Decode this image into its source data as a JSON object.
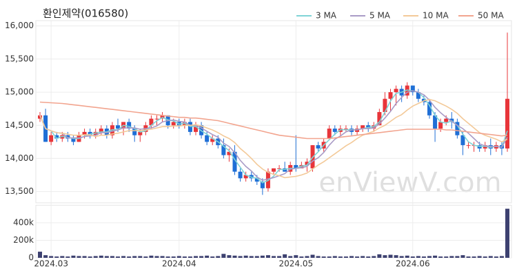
{
  "chart_data": {
    "type": "candlestick",
    "title": "환인제약(016580)",
    "watermark": "enViewV.com",
    "categories": [
      null,
      null,
      "2024.03",
      null,
      null,
      null,
      null,
      null,
      null,
      null,
      null,
      null,
      null,
      null,
      null,
      null,
      null,
      null,
      null,
      null,
      null,
      null,
      null,
      null,
      null,
      "2024.04",
      null,
      null,
      null,
      null,
      null,
      null,
      null,
      null,
      null,
      null,
      null,
      null,
      null,
      null,
      null,
      null,
      null,
      null,
      null,
      null,
      "2024.05",
      null,
      null,
      null,
      null,
      null,
      null,
      null,
      null,
      null,
      null,
      null,
      null,
      null,
      null,
      null,
      null,
      null,
      null,
      null,
      null,
      "2024.06",
      null,
      null,
      null,
      null,
      null,
      null,
      null,
      null,
      null,
      null,
      null,
      null,
      null,
      null,
      null,
      null,
      null
    ],
    "open": [
      14600,
      14650,
      14250,
      14350,
      14300,
      14350,
      14300,
      14250,
      14350,
      14400,
      14350,
      14400,
      14450,
      14350,
      14500,
      14450,
      14550,
      14450,
      14350,
      14400,
      14500,
      14600,
      14600,
      14650,
      14500,
      14550,
      14500,
      14550,
      14400,
      14500,
      14350,
      14250,
      14300,
      14200,
      14050,
      14100,
      13800,
      13700,
      13750,
      13700,
      13650,
      13550,
      13800,
      13850,
      13850,
      13800,
      13900,
      13850,
      13900,
      13850,
      14200,
      14150,
      14300,
      14450,
      14400,
      14450,
      14450,
      14400,
      14450,
      14500,
      14450,
      14500,
      14700,
      14900,
      15000,
      15050,
      14950,
      15100,
      15000,
      14900,
      14850,
      14650,
      14450,
      14550,
      14600,
      14550,
      14350,
      14200,
      14200,
      14200,
      14150,
      14200,
      14150,
      14200,
      14150
    ],
    "high": [
      14700,
      14750,
      14400,
      14400,
      14400,
      14400,
      14350,
      14400,
      14450,
      14450,
      14450,
      14500,
      14500,
      14550,
      14600,
      14550,
      14600,
      14500,
      14450,
      14550,
      14650,
      14650,
      14700,
      14650,
      14600,
      14600,
      14600,
      14600,
      14550,
      14550,
      14400,
      14350,
      14350,
      14300,
      14150,
      14200,
      13850,
      13800,
      13800,
      13750,
      13700,
      13850,
      13850,
      13900,
      13950,
      13950,
      14350,
      13950,
      14000,
      14200,
      14250,
      14300,
      14500,
      14500,
      14500,
      14500,
      14500,
      14500,
      14500,
      14550,
      14550,
      14750,
      15000,
      15050,
      15100,
      15100,
      15150,
      15100,
      15050,
      14950,
      14900,
      14700,
      14600,
      14650,
      14700,
      14600,
      14400,
      14250,
      14250,
      14250,
      14250,
      14300,
      14250,
      14250,
      15900
    ],
    "low": [
      14550,
      14250,
      14200,
      14250,
      14250,
      14250,
      14200,
      14250,
      14300,
      14300,
      14300,
      14350,
      14300,
      14300,
      14400,
      14350,
      14400,
      14250,
      14250,
      14350,
      14450,
      14500,
      14550,
      14450,
      14450,
      14450,
      14450,
      14350,
      14350,
      14300,
      14200,
      14200,
      14150,
      14000,
      13950,
      13750,
      13650,
      13650,
      13650,
      13600,
      13450,
      13500,
      13750,
      13800,
      13800,
      13750,
      13800,
      13850,
      13800,
      13800,
      14100,
      14100,
      14300,
      14350,
      14350,
      14400,
      14350,
      14350,
      14400,
      14400,
      14400,
      14500,
      14650,
      14700,
      14800,
      14850,
      14900,
      14950,
      14850,
      14800,
      14600,
      14250,
      14400,
      14500,
      14450,
      14300,
      14050,
      14150,
      14100,
      14100,
      14100,
      14050,
      14100,
      14050,
      14100
    ],
    "close": [
      14650,
      14250,
      14350,
      14300,
      14350,
      14300,
      14250,
      14350,
      14400,
      14350,
      14400,
      14450,
      14350,
      14500,
      14450,
      14550,
      14450,
      14350,
      14400,
      14500,
      14600,
      14600,
      14650,
      14500,
      14550,
      14500,
      14550,
      14400,
      14500,
      14350,
      14250,
      14300,
      14200,
      14050,
      14100,
      13800,
      13700,
      13750,
      13700,
      13650,
      13550,
      13800,
      13850,
      13850,
      13800,
      13900,
      13850,
      13900,
      13950,
      14200,
      14150,
      14250,
      14450,
      14400,
      14450,
      14450,
      14400,
      14450,
      14500,
      14450,
      14500,
      14700,
      14900,
      15000,
      15050,
      14950,
      15100,
      15000,
      14900,
      14850,
      14650,
      14450,
      14550,
      14600,
      14550,
      14350,
      14200,
      14200,
      14200,
      14150,
      14200,
      14150,
      14200,
      14150,
      14900
    ],
    "up_color": "#e8353a",
    "down_color": "#1f6fd6",
    "series": [
      {
        "name": "3 MA",
        "color": "#7fd3d6",
        "values": [
          14650,
          14450,
          14417,
          14300,
          14333,
          14317,
          14300,
          14300,
          14333,
          14367,
          14383,
          14400,
          14400,
          14433,
          14433,
          14500,
          14483,
          14450,
          14400,
          14417,
          14500,
          14567,
          14617,
          14583,
          14567,
          14517,
          14533,
          14483,
          14483,
          14417,
          14367,
          14300,
          14250,
          14183,
          14117,
          13983,
          13867,
          13750,
          13717,
          13700,
          13633,
          13667,
          13733,
          13833,
          13833,
          13850,
          13850,
          13883,
          13900,
          14017,
          14100,
          14200,
          14283,
          14367,
          14433,
          14433,
          14433,
          14433,
          14450,
          14467,
          14483,
          14550,
          14700,
          14867,
          14983,
          15000,
          15033,
          15017,
          15000,
          14917,
          14800,
          14650,
          14550,
          14533,
          14567,
          14500,
          14367,
          14250,
          14200,
          14183,
          14183,
          14167,
          14183,
          14167,
          14417
        ]
      },
      {
        "name": "5 MA",
        "color": "#a99bc6",
        "values": [
          14650,
          14450,
          14417,
          14388,
          14380,
          14310,
          14310,
          14310,
          14330,
          14340,
          14350,
          14390,
          14390,
          14410,
          14430,
          14460,
          14460,
          14460,
          14440,
          14450,
          14460,
          14490,
          14550,
          14570,
          14580,
          14560,
          14550,
          14500,
          14500,
          14460,
          14410,
          14360,
          14320,
          14230,
          14180,
          14090,
          13970,
          13880,
          13810,
          13720,
          13670,
          13690,
          13710,
          13740,
          13770,
          13840,
          13850,
          13860,
          13880,
          13960,
          14010,
          14090,
          14200,
          14290,
          14340,
          14400,
          14430,
          14430,
          14450,
          14450,
          14460,
          14520,
          14610,
          14710,
          14830,
          14920,
          15000,
          15020,
          15000,
          14960,
          14880,
          14770,
          14690,
          14620,
          14560,
          14500,
          14450,
          14380,
          14300,
          14220,
          14190,
          14180,
          14180,
          14170,
          14320
        ]
      },
      {
        "name": "10 MA",
        "color": "#f3c998",
        "values": [
          14650,
          14450,
          14417,
          14388,
          14380,
          14367,
          14350,
          14350,
          14356,
          14355,
          14330,
          14350,
          14350,
          14370,
          14380,
          14400,
          14420,
          14420,
          14420,
          14430,
          14440,
          14460,
          14480,
          14480,
          14490,
          14490,
          14500,
          14500,
          14510,
          14490,
          14460,
          14430,
          14390,
          14340,
          14300,
          14240,
          14150,
          14080,
          14000,
          13910,
          13840,
          13790,
          13760,
          13740,
          13710,
          13720,
          13730,
          13750,
          13780,
          13840,
          13900,
          13950,
          14010,
          14070,
          14130,
          14190,
          14240,
          14300,
          14350,
          14380,
          14410,
          14460,
          14500,
          14560,
          14620,
          14660,
          14730,
          14790,
          14830,
          14870,
          14890,
          14870,
          14830,
          14790,
          14740,
          14680,
          14600,
          14530,
          14460,
          14390,
          14350,
          14320,
          14290,
          14250,
          14290
        ]
      },
      {
        "name": "50 MA",
        "color": "#f2a48e",
        "values": [
          14850,
          14845,
          14840,
          14835,
          14830,
          14820,
          14810,
          14800,
          14790,
          14780,
          14770,
          14760,
          14750,
          14740,
          14730,
          14720,
          14710,
          14700,
          14690,
          14680,
          14670,
          14660,
          14650,
          14640,
          14630,
          14620,
          14620,
          14610,
          14610,
          14600,
          14590,
          14580,
          14570,
          14550,
          14530,
          14510,
          14490,
          14470,
          14450,
          14430,
          14410,
          14390,
          14370,
          14350,
          14340,
          14330,
          14320,
          14310,
          14300,
          14300,
          14300,
          14300,
          14300,
          14310,
          14320,
          14330,
          14340,
          14350,
          14360,
          14370,
          14380,
          14390,
          14400,
          14410,
          14420,
          14430,
          14440,
          14440,
          14440,
          14440,
          14440,
          14440,
          14440,
          14430,
          14430,
          14420,
          14410,
          14400,
          14390,
          14380,
          14370,
          14360,
          14350,
          14340,
          14350
        ]
      }
    ],
    "ylim": [
      13330,
      16080
    ],
    "yticks": [
      {
        "value": 13500,
        "label": "13,500"
      },
      {
        "value": 14000,
        "label": "14,000"
      },
      {
        "value": 14500,
        "label": "14,500"
      },
      {
        "value": 15000,
        "label": "15,000"
      },
      {
        "value": 15500,
        "label": "15,500"
      },
      {
        "value": 16000,
        "label": "16,000"
      }
    ],
    "volume": [
      70000,
      30000,
      20000,
      15000,
      20000,
      15000,
      25000,
      20000,
      20000,
      15000,
      20000,
      25000,
      20000,
      20000,
      15000,
      20000,
      15000,
      20000,
      20000,
      15000,
      25000,
      20000,
      20000,
      15000,
      15000,
      20000,
      15000,
      15000,
      20000,
      20000,
      25000,
      15000,
      20000,
      45000,
      30000,
      25000,
      20000,
      25000,
      20000,
      20000,
      25000,
      30000,
      20000,
      20000,
      40000,
      20000,
      30000,
      15000,
      20000,
      35000,
      20000,
      15000,
      15000,
      20000,
      15000,
      15000,
      20000,
      15000,
      20000,
      15000,
      20000,
      40000,
      30000,
      35000,
      30000,
      20000,
      25000,
      15000,
      20000,
      15000,
      20000,
      25000,
      15000,
      15000,
      20000,
      20000,
      30000,
      15000,
      15000,
      20000,
      15000,
      20000,
      15000,
      20000,
      560000
    ],
    "volume_color": "#3d4170",
    "volume_ylim": [
      0,
      600000
    ],
    "volume_yticks": [
      0,
      {
        "value": 200000,
        "label": "200k"
      },
      {
        "value": 400000,
        "label": "400k"
      }
    ],
    "grid": true
  }
}
